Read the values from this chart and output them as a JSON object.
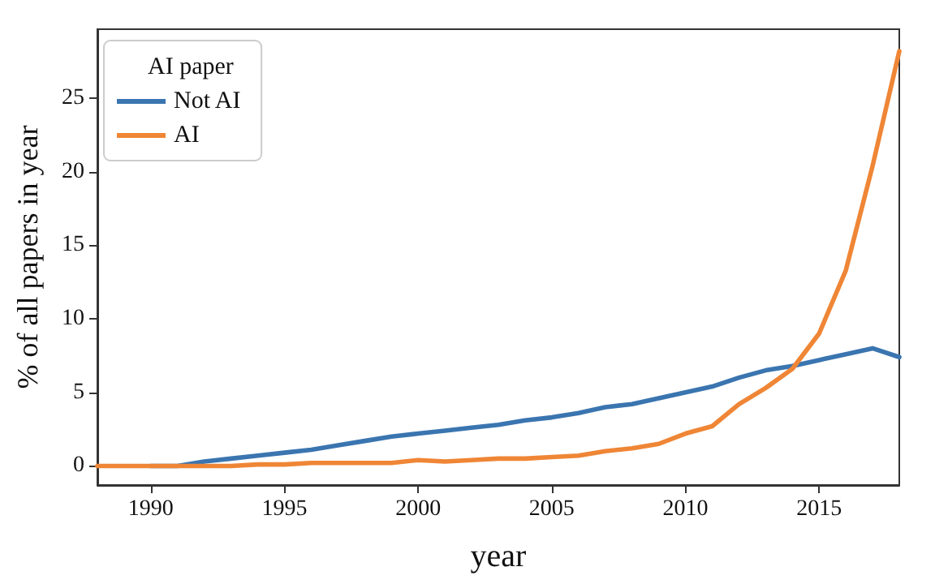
{
  "chart_data": {
    "type": "line",
    "xlabel": "year",
    "ylabel": "% of all papers in year",
    "legend_title": "AI paper",
    "x": [
      1988,
      1989,
      1990,
      1991,
      1992,
      1993,
      1994,
      1995,
      1996,
      1997,
      1998,
      1999,
      2000,
      2001,
      2002,
      2003,
      2004,
      2005,
      2006,
      2007,
      2008,
      2009,
      2010,
      2011,
      2012,
      2013,
      2014,
      2015,
      2016,
      2017,
      2018
    ],
    "series": [
      {
        "name": "Not AI",
        "color": "#3a75b0",
        "values": [
          null,
          null,
          0,
          0,
          0.3,
          0.5,
          0.7,
          0.9,
          1.1,
          1.4,
          1.7,
          2.0,
          2.2,
          2.4,
          2.6,
          2.8,
          3.1,
          3.3,
          3.6,
          4.0,
          4.2,
          4.6,
          5.0,
          5.4,
          6.0,
          6.5,
          6.8,
          7.2,
          7.6,
          8.0,
          7.4
        ]
      },
      {
        "name": "AI",
        "color": "#ef8636",
        "values": [
          0,
          0,
          0,
          0,
          0,
          0,
          0.1,
          0.1,
          0.2,
          0.2,
          0.2,
          0.2,
          0.4,
          0.3,
          0.4,
          0.5,
          0.5,
          0.6,
          0.7,
          1.0,
          1.2,
          1.5,
          2.2,
          2.7,
          4.2,
          5.3,
          6.6,
          9.0,
          13.3,
          20.4,
          28.2
        ]
      }
    ],
    "xlim": [
      1988,
      2018
    ],
    "xticks": [
      1990,
      1995,
      2000,
      2005,
      2010,
      2015
    ],
    "ylim": [
      -1.3,
      29.7
    ],
    "yticks": [
      0,
      5,
      10,
      15,
      20,
      25
    ],
    "grid": false,
    "legend": "top left",
    "marker": "none",
    "line_style": "solid"
  }
}
